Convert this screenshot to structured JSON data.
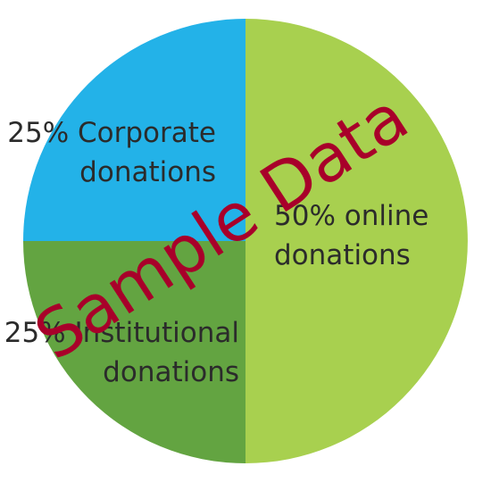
{
  "chart_data": {
    "type": "pie",
    "slices": [
      {
        "name": "online donations",
        "value": 50,
        "color": "#a8d04f",
        "label_lines": [
          "50% online",
          "donations"
        ]
      },
      {
        "name": "Institutional donations",
        "value": 25,
        "color": "#63a441",
        "label_lines": [
          "25% Institutional",
          "donations"
        ]
      },
      {
        "name": "Corporate donations",
        "value": 25,
        "color": "#23b2e8",
        "label_lines": [
          "25% Corporate",
          "donations"
        ]
      }
    ],
    "title": "",
    "legend": "none"
  },
  "watermark": {
    "text": "Sample Data",
    "color": "#a8002a"
  }
}
